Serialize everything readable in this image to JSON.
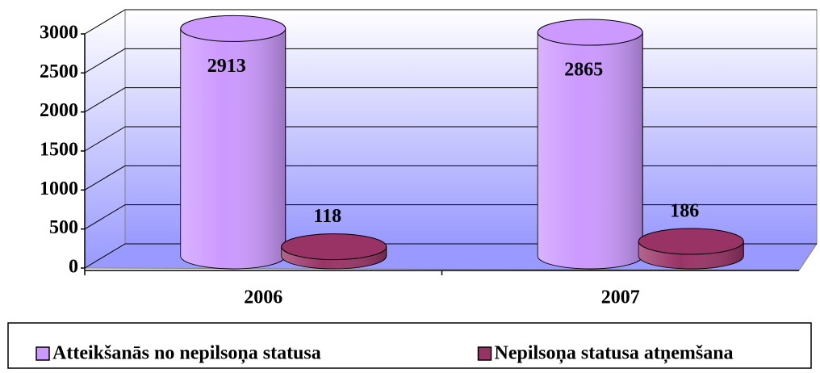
{
  "chart_data": {
    "type": "bar3d",
    "categories": [
      "2006",
      "2007"
    ],
    "series": [
      {
        "name": "Atteikšanās no nepilsoņa statusa",
        "color": "#cc99ff",
        "values": [
          2913,
          2865
        ]
      },
      {
        "name": "Nepilsoņa statusa atņemšana",
        "color": "#993366",
        "values": [
          118,
          186
        ]
      }
    ],
    "ylim": [
      0,
      3000
    ],
    "yticks": [
      0,
      500,
      1000,
      1500,
      2000,
      2500,
      3000
    ],
    "grid": true,
    "legend": "bottom"
  }
}
